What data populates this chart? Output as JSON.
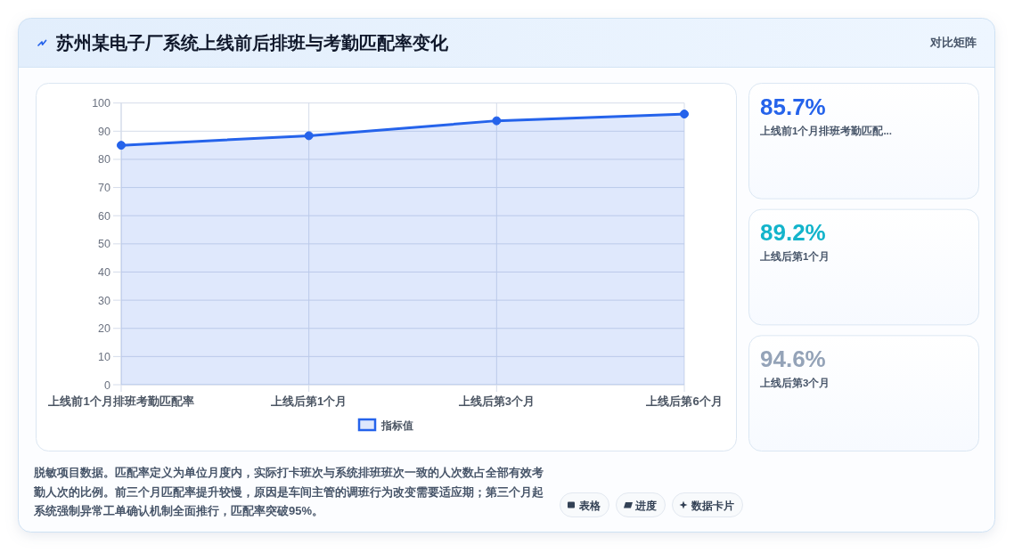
{
  "chart_data": [
    {
      "type": "line",
      "title": "苏州某电子厂系统上线前后排班与考勤匹配率变化",
      "categories": [
        "上线前1个月排班考勤匹配率",
        "上线后第1个月",
        "上线后第3个月",
        "上线后第6个月"
      ],
      "series": [
        {
          "name": "指标值",
          "color": "#2563eb",
          "values": [
            85.0,
            88.4,
            93.7,
            96.1
          ]
        }
      ],
      "ylim": [
        0,
        100
      ],
      "yticks": [
        0,
        10,
        20,
        30,
        40,
        50,
        60,
        70,
        80,
        90,
        100
      ],
      "grid": true,
      "legend": "bottom",
      "marker": "circle",
      "line_style": "solid",
      "annotations": [
        "对比矩阵",
        "脱敏项目数据。匹配率定义为单位月度内，实际打卡班次与系统排班班次一致的人次数占全部有效考勤人次的比例。前三个月匹配率提升较慢，原因是车间主管的调班行为改变需要适应期；第三个月起系统强制异常工单确认机制全面推行，匹配率突破95%。",
        "表格",
        "进度",
        "数据卡片"
      ]
    },
    {
      "type": "other",
      "categories": [
        "上线前1个月排班考勤匹配...",
        "上线后第1个月",
        "上线后第3个月"
      ],
      "value_labels": [
        "85.7%",
        "89.2%",
        "94.6%"
      ]
    }
  ]
}
